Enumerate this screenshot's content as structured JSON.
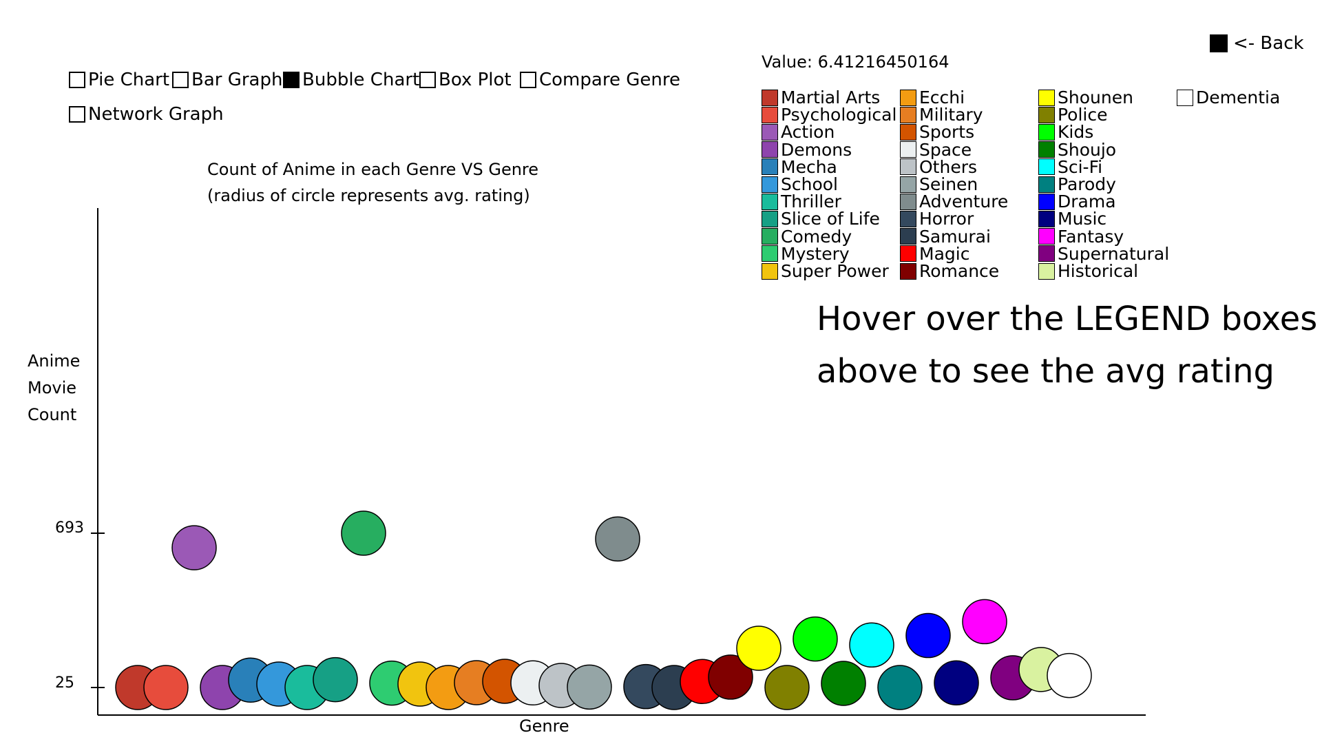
{
  "chart_types": {
    "pie": {
      "label": "Pie Chart",
      "selected": false
    },
    "bar": {
      "label": "Bar Graph",
      "selected": false
    },
    "bubble": {
      "label": "Bubble Chart",
      "selected": true
    },
    "box": {
      "label": "Box Plot",
      "selected": false
    },
    "compare": {
      "label": "Compare Genre",
      "selected": false
    },
    "network": {
      "label": "Network Graph",
      "selected": false
    }
  },
  "back_label": "<- Back",
  "value_readout": "Value: 6.41216450164",
  "hover_hint": "Hover over the LEGEND boxes above to see the avg rating",
  "chart_data": {
    "type": "scatter",
    "title_line1": "Count of Anime in each Genre VS Genre",
    "title_line2": "(radius of circle represents avg. rating)",
    "xlabel": "Genre",
    "ylabel": "Anime Movie Count",
    "y_ticks": [
      "693",
      "25"
    ],
    "ylim": [
      25,
      693
    ],
    "points": [
      {
        "genre": "Martial Arts",
        "count": 25,
        "color": "#c0392b"
      },
      {
        "genre": "Psychological",
        "count": 25,
        "color": "#e74c3c"
      },
      {
        "genre": "Action",
        "count": 630,
        "color": "#9b59b6"
      },
      {
        "genre": "Demons",
        "count": 25,
        "color": "#8e44ad"
      },
      {
        "genre": "Mecha",
        "count": 57,
        "color": "#2980b9"
      },
      {
        "genre": "School",
        "count": 40,
        "color": "#3498db"
      },
      {
        "genre": "Thriller",
        "count": 25,
        "color": "#1abc9c"
      },
      {
        "genre": "Slice of Life",
        "count": 59,
        "color": "#16a085"
      },
      {
        "genre": "Comedy",
        "count": 693,
        "color": "#27ae60"
      },
      {
        "genre": "Mystery",
        "count": 44,
        "color": "#2ecc71"
      },
      {
        "genre": "Super Power",
        "count": 40,
        "color": "#f1c40f"
      },
      {
        "genre": "Ecchi",
        "count": 25,
        "color": "#f39c12"
      },
      {
        "genre": "Military",
        "count": 46,
        "color": "#e67e22"
      },
      {
        "genre": "Sports",
        "count": 52,
        "color": "#d35400"
      },
      {
        "genre": "Space",
        "count": 45,
        "color": "#ecf0f1"
      },
      {
        "genre": "Others",
        "count": 34,
        "color": "#bdc3c7"
      },
      {
        "genre": "Seinen",
        "count": 27,
        "color": "#95a5a6"
      },
      {
        "genre": "Adventure",
        "count": 668,
        "color": "#7f8c8d"
      },
      {
        "genre": "Horror",
        "count": 29,
        "color": "#34495e"
      },
      {
        "genre": "Samurai",
        "count": 25,
        "color": "#2c3e50"
      },
      {
        "genre": "Magic",
        "count": 51,
        "color": "#ff0000"
      },
      {
        "genre": "Romance",
        "count": 70,
        "color": "#800000"
      },
      {
        "genre": "Shounen",
        "count": 195,
        "color": "#ffff00"
      },
      {
        "genre": "Police",
        "count": 25,
        "color": "#808000"
      },
      {
        "genre": "Kids",
        "count": 235,
        "color": "#00ff00"
      },
      {
        "genre": "Shoujo",
        "count": 43,
        "color": "#008000"
      },
      {
        "genre": "Sci-Fi",
        "count": 209,
        "color": "#00ffff"
      },
      {
        "genre": "Parody",
        "count": 25,
        "color": "#008080"
      },
      {
        "genre": "Drama",
        "count": 250,
        "color": "#0000ff"
      },
      {
        "genre": "Music",
        "count": 45,
        "color": "#000080"
      },
      {
        "genre": "Fantasy",
        "count": 310,
        "color": "#ff00ff"
      },
      {
        "genre": "Supernatural",
        "count": 67,
        "color": "#800080"
      },
      {
        "genre": "Historical",
        "count": 103,
        "color": "#d9f2a0"
      },
      {
        "genre": "Dementia",
        "count": 77,
        "color": "#ffffff"
      }
    ],
    "radius": 32
  },
  "legend": [
    {
      "label": "Martial Arts",
      "color": "#c0392b"
    },
    {
      "label": "Psychological",
      "color": "#e74c3c"
    },
    {
      "label": "Action",
      "color": "#9b59b6"
    },
    {
      "label": "Demons",
      "color": "#8e44ad"
    },
    {
      "label": "Mecha",
      "color": "#2980b9"
    },
    {
      "label": "School",
      "color": "#3498db"
    },
    {
      "label": "Thriller",
      "color": "#1abc9c"
    },
    {
      "label": "Slice of Life",
      "color": "#16a085"
    },
    {
      "label": "Comedy",
      "color": "#27ae60"
    },
    {
      "label": "Mystery",
      "color": "#2ecc71"
    },
    {
      "label": "Super Power",
      "color": "#f1c40f"
    },
    {
      "label": "Ecchi",
      "color": "#f39c12"
    },
    {
      "label": "Military",
      "color": "#e67e22"
    },
    {
      "label": "Sports",
      "color": "#d35400"
    },
    {
      "label": "Space",
      "color": "#ecf0f1"
    },
    {
      "label": "Others",
      "color": "#bdc3c7"
    },
    {
      "label": "Seinen",
      "color": "#95a5a6"
    },
    {
      "label": "Adventure",
      "color": "#7f8c8d"
    },
    {
      "label": "Horror",
      "color": "#34495e"
    },
    {
      "label": "Samurai",
      "color": "#2c3e50"
    },
    {
      "label": "Magic",
      "color": "#ff0000"
    },
    {
      "label": "Romance",
      "color": "#800000"
    },
    {
      "label": "Shounen",
      "color": "#ffff00"
    },
    {
      "label": "Police",
      "color": "#808000"
    },
    {
      "label": "Kids",
      "color": "#00ff00"
    },
    {
      "label": "Shoujo",
      "color": "#008000"
    },
    {
      "label": "Sci-Fi",
      "color": "#00ffff"
    },
    {
      "label": "Parody",
      "color": "#008080"
    },
    {
      "label": "Drama",
      "color": "#0000ff"
    },
    {
      "label": "Music",
      "color": "#000080"
    },
    {
      "label": "Fantasy",
      "color": "#ff00ff"
    },
    {
      "label": "Supernatural",
      "color": "#800080"
    },
    {
      "label": "Historical",
      "color": "#d9f2a0"
    },
    {
      "label": "Dementia",
      "color": "#ffffff"
    }
  ]
}
